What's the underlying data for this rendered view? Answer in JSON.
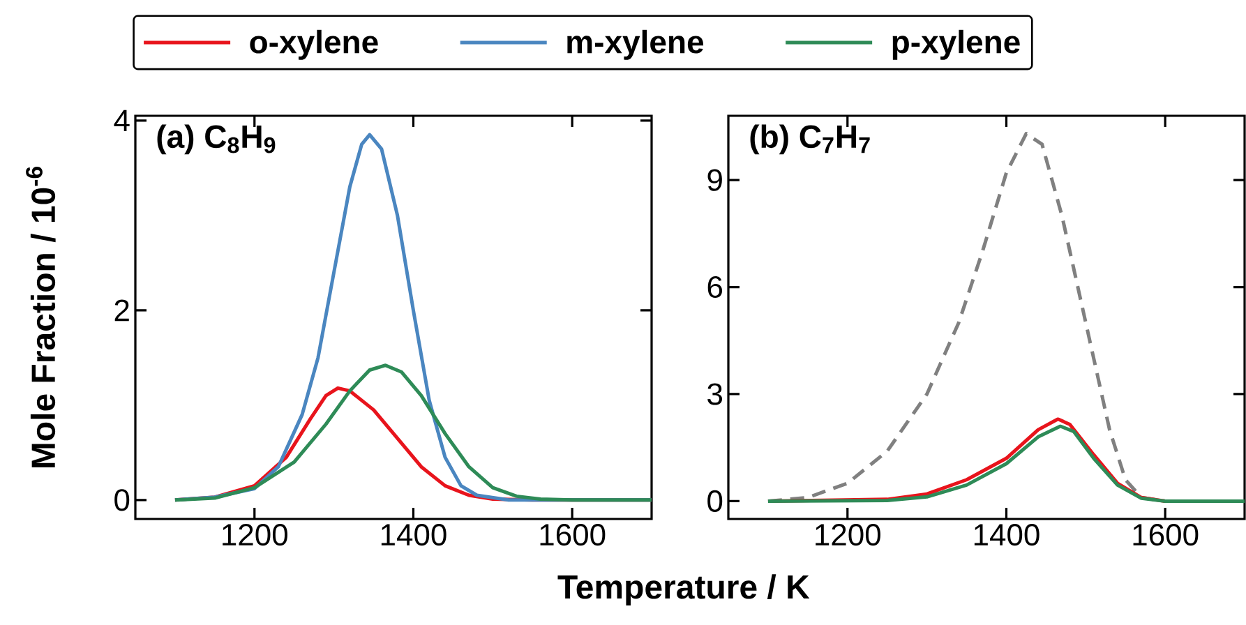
{
  "chart_data": [
    {
      "type": "line",
      "title": "(a) C$_{8}$H$_{9}$",
      "xlabel": "Temperature / K",
      "ylabel": "Mole Fraction / 10$^{-6}$",
      "xlim": [
        1050,
        1700
      ],
      "ylim": [
        -0.2,
        4.05
      ],
      "xticks": [
        1200,
        1400,
        1600
      ],
      "yticks": [
        0,
        2,
        4
      ],
      "legend": "top",
      "grid": false,
      "series": [
        {
          "name": "o-xylene",
          "color": "#e8141c",
          "x": [
            1100,
            1150,
            1200,
            1240,
            1270,
            1290,
            1305,
            1320,
            1350,
            1380,
            1410,
            1440,
            1470,
            1500,
            1550,
            1700
          ],
          "values": [
            0,
            0.03,
            0.15,
            0.45,
            0.85,
            1.1,
            1.18,
            1.15,
            0.95,
            0.65,
            0.35,
            0.15,
            0.05,
            0.01,
            0,
            0
          ]
        },
        {
          "name": "m-xylene",
          "color": "#4a86c0",
          "x": [
            1100,
            1150,
            1200,
            1230,
            1260,
            1280,
            1300,
            1320,
            1335,
            1345,
            1360,
            1380,
            1400,
            1420,
            1440,
            1460,
            1480,
            1520,
            1700
          ],
          "values": [
            0,
            0.03,
            0.12,
            0.35,
            0.9,
            1.5,
            2.4,
            3.3,
            3.75,
            3.85,
            3.7,
            3.0,
            2.0,
            1.05,
            0.45,
            0.15,
            0.05,
            0,
            0
          ]
        },
        {
          "name": "p-xylene",
          "color": "#2e8b57",
          "x": [
            1100,
            1150,
            1200,
            1250,
            1290,
            1320,
            1345,
            1365,
            1385,
            1410,
            1440,
            1470,
            1500,
            1530,
            1560,
            1600,
            1700
          ],
          "values": [
            0,
            0.02,
            0.13,
            0.4,
            0.8,
            1.15,
            1.37,
            1.42,
            1.35,
            1.1,
            0.7,
            0.35,
            0.13,
            0.04,
            0.01,
            0,
            0
          ]
        }
      ]
    },
    {
      "type": "line",
      "title": "(b) C$_{7}$H$_{7}$",
      "xlim": [
        1050,
        1700
      ],
      "ylim": [
        -0.5,
        10.8
      ],
      "xticks": [
        1200,
        1400,
        1600
      ],
      "yticks": [
        0,
        3,
        6,
        9
      ],
      "series": [
        {
          "color": "#808080",
          "line_style": "dashed",
          "x": [
            1100,
            1150,
            1200,
            1250,
            1300,
            1340,
            1370,
            1400,
            1425,
            1445,
            1470,
            1500,
            1530,
            1550,
            1570,
            1600,
            1700
          ],
          "values": [
            0,
            0.1,
            0.5,
            1.4,
            3.0,
            5.0,
            7.0,
            9.2,
            10.3,
            10.0,
            8.0,
            5.0,
            2.0,
            0.6,
            0.1,
            0,
            0
          ]
        },
        {
          "color": "#e8141c",
          "x": [
            1100,
            1250,
            1300,
            1350,
            1400,
            1440,
            1465,
            1480,
            1510,
            1540,
            1570,
            1600,
            1700
          ],
          "values": [
            0,
            0.05,
            0.2,
            0.6,
            1.2,
            2.0,
            2.3,
            2.15,
            1.3,
            0.5,
            0.1,
            0,
            0
          ]
        },
        {
          "color": "#2e8b57",
          "x": [
            1100,
            1250,
            1300,
            1350,
            1400,
            1440,
            1468,
            1485,
            1510,
            1540,
            1570,
            1600,
            1700
          ],
          "values": [
            0,
            0.02,
            0.12,
            0.45,
            1.05,
            1.8,
            2.1,
            1.95,
            1.2,
            0.45,
            0.08,
            0,
            0
          ]
        }
      ]
    }
  ]
}
